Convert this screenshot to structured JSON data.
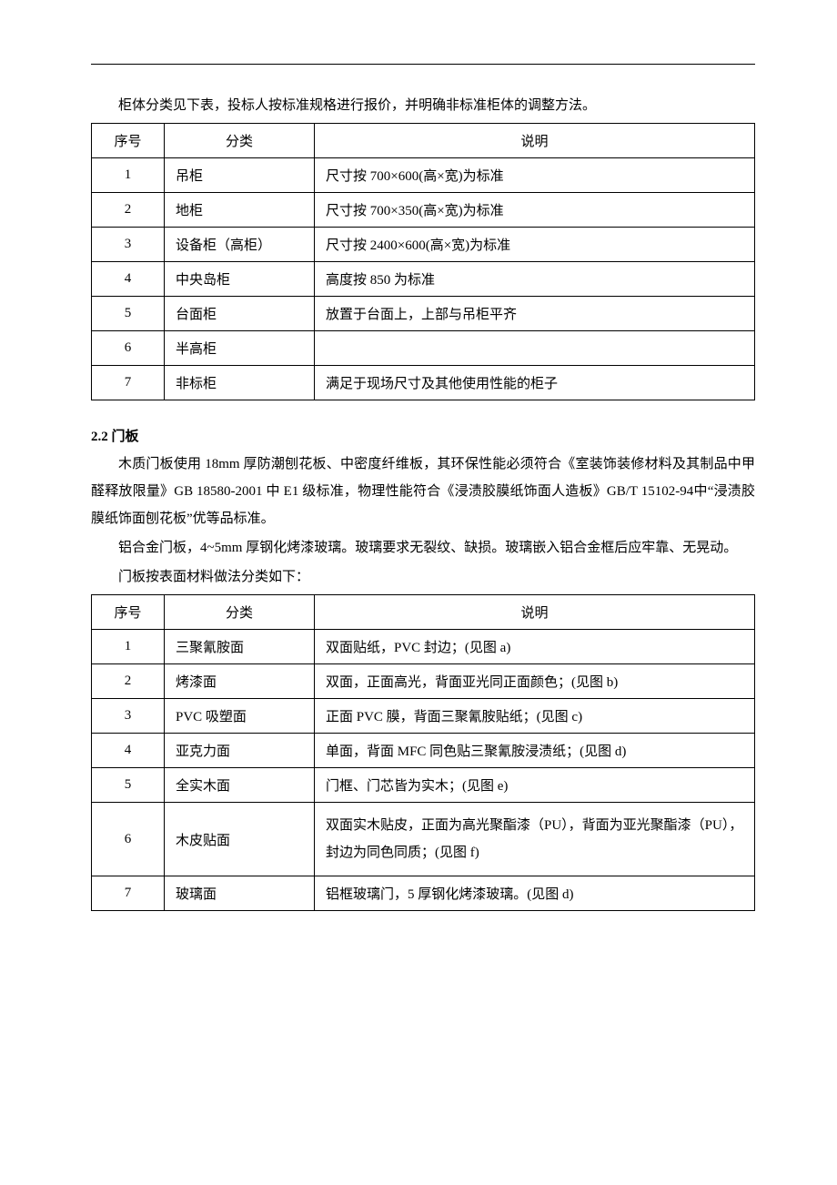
{
  "intro1": "柜体分类见下表，投标人按标准规格进行报价，并明确非标准柜体的调整方法。",
  "table1": {
    "headers": {
      "num": "序号",
      "cat": "分类",
      "desc": "说明"
    },
    "rows": [
      {
        "num": "1",
        "cat": "吊柜",
        "desc": "尺寸按 700×600(高×宽)为标准"
      },
      {
        "num": "2",
        "cat": "地柜",
        "desc": "尺寸按 700×350(高×宽)为标准"
      },
      {
        "num": "3",
        "cat": "设备柜（高柜）",
        "desc": "尺寸按 2400×600(高×宽)为标准"
      },
      {
        "num": "4",
        "cat": "中央岛柜",
        "desc": "高度按 850 为标准"
      },
      {
        "num": "5",
        "cat": "台面柜",
        "desc": "放置于台面上，上部与吊柜平齐"
      },
      {
        "num": "6",
        "cat": "半高柜",
        "desc": ""
      },
      {
        "num": "7",
        "cat": "非标柜",
        "desc": "满足于现场尺寸及其他使用性能的柜子"
      }
    ]
  },
  "section22": "2.2 门板",
  "para22a": "木质门板使用 18mm 厚防潮刨花板、中密度纤维板，其环保性能必须符合《室装饰装修材料及其制品中甲醛释放限量》GB 18580-2001 中 E1 级标准，物理性能符合《浸渍胶膜纸饰面人造板》GB/T 15102-94中“浸渍胶膜纸饰面刨花板”优等品标准。",
  "para22b": "铝合金门板，4~5mm 厚钢化烤漆玻璃。玻璃要求无裂纹、缺损。玻璃嵌入铝合金框后应牢靠、无晃动。",
  "para22c": "门板按表面材料做法分类如下：",
  "table2": {
    "headers": {
      "num": "序号",
      "cat": "分类",
      "desc": "说明"
    },
    "rows": [
      {
        "num": "1",
        "cat": "三聚氰胺面",
        "desc": "双面贴纸，PVC 封边；(见图 a)"
      },
      {
        "num": "2",
        "cat": "烤漆面",
        "desc": "双面，正面高光，背面亚光同正面颜色；(见图 b)"
      },
      {
        "num": "3",
        "cat": "PVC 吸塑面",
        "desc": "正面 PVC 膜，背面三聚氰胺贴纸；(见图 c)"
      },
      {
        "num": "4",
        "cat": "亚克力面",
        "desc": "单面，背面 MFC 同色贴三聚氰胺浸渍纸；(见图 d)"
      },
      {
        "num": "5",
        "cat": "全实木面",
        "desc": "门框、门芯皆为实木；(见图 e)"
      },
      {
        "num": "6",
        "cat": "木皮贴面",
        "desc": "双面实木贴皮，正面为高光聚酯漆（PU），背面为亚光聚酯漆（PU），封边为同色同质；(见图 f)",
        "tall": true
      },
      {
        "num": "7",
        "cat": "玻璃面",
        "desc": "铝框玻璃门，5 厚钢化烤漆玻璃。(见图 d)"
      }
    ]
  }
}
